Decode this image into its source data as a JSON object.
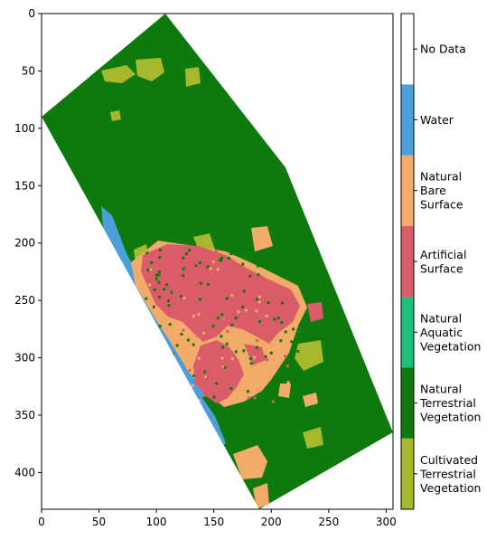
{
  "chart_data": {
    "type": "heatmap",
    "title": "",
    "xlabel": "",
    "ylabel": "",
    "xlim": [
      0,
      306
    ],
    "ylim": [
      432,
      0
    ],
    "x_ticks": [
      "0",
      "50",
      "100",
      "150",
      "200",
      "250",
      "300"
    ],
    "y_ticks": [
      "0",
      "50",
      "100",
      "150",
      "200",
      "250",
      "300",
      "350",
      "400"
    ],
    "legend_position": "right colorbar",
    "colormap_classes": [
      {
        "label": "Cultivated Terrestrial Vegetation",
        "color": "#a5b82e"
      },
      {
        "label": "Natural Terrestrial Vegetation",
        "color": "#0e7a0d"
      },
      {
        "label": "Natural Aquatic Vegetation",
        "color": "#1ebf79"
      },
      {
        "label": "Artificial Surface",
        "color": "#da5c69"
      },
      {
        "label": "Natural Bare Surface",
        "color": "#f3ab69"
      },
      {
        "label": "Water",
        "color": "#4d9fdc"
      },
      {
        "label": "No Data",
        "color": "#ffffff"
      }
    ]
  }
}
